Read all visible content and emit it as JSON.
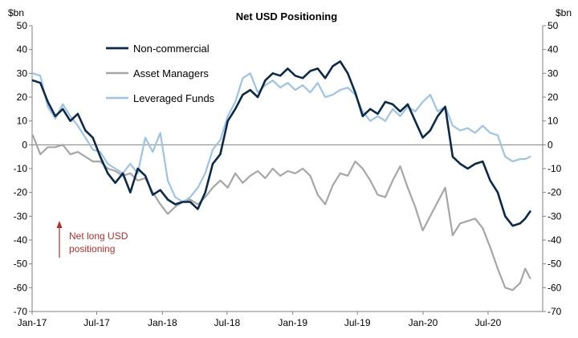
{
  "chart_data": {
    "type": "line",
    "title": "Net USD Positioning",
    "ylabel_left": "$bn",
    "ylabel_right": "$bn",
    "ylim": [
      -70,
      50
    ],
    "yticks": [
      -70,
      -60,
      -50,
      -40,
      -30,
      -20,
      -10,
      0,
      10,
      20,
      30,
      40,
      50
    ],
    "x_range": [
      "2017-01-01",
      "2020-12-01"
    ],
    "x_tick_labels": [
      {
        "label": "Jan-17",
        "date": "2017-01-01"
      },
      {
        "label": "Jul-17",
        "date": "2017-07-01"
      },
      {
        "label": "Jan-18",
        "date": "2018-01-01"
      },
      {
        "label": "Jul-18",
        "date": "2018-07-01"
      },
      {
        "label": "Jan-19",
        "date": "2019-01-01"
      },
      {
        "label": "Jul-19",
        "date": "2019-07-01"
      },
      {
        "label": "Jan-20",
        "date": "2020-01-01"
      },
      {
        "label": "Jul-20",
        "date": "2020-07-01"
      }
    ],
    "legend_position": "top-left",
    "annotation": {
      "lines": [
        "Net long USD",
        "positioning"
      ],
      "color": "#b03030"
    },
    "series": [
      {
        "name": "Non-commercial",
        "color": "#0b2a4a",
        "points": [
          [
            "2017-01-03",
            27
          ],
          [
            "2017-01-24",
            26
          ],
          [
            "2017-02-14",
            18
          ],
          [
            "2017-03-07",
            12
          ],
          [
            "2017-03-28",
            15
          ],
          [
            "2017-04-18",
            10
          ],
          [
            "2017-05-09",
            13
          ],
          [
            "2017-05-30",
            6
          ],
          [
            "2017-06-20",
            3
          ],
          [
            "2017-07-11",
            -5
          ],
          [
            "2017-08-01",
            -12
          ],
          [
            "2017-08-22",
            -16
          ],
          [
            "2017-09-12",
            -12
          ],
          [
            "2017-10-03",
            -20
          ],
          [
            "2017-10-24",
            -10
          ],
          [
            "2017-11-14",
            -13
          ],
          [
            "2017-12-05",
            -21
          ],
          [
            "2017-12-26",
            -19
          ],
          [
            "2018-01-16",
            -23
          ],
          [
            "2018-02-06",
            -25
          ],
          [
            "2018-02-27",
            -24
          ],
          [
            "2018-03-20",
            -24
          ],
          [
            "2018-04-10",
            -27
          ],
          [
            "2018-05-01",
            -20
          ],
          [
            "2018-05-22",
            -8
          ],
          [
            "2018-06-12",
            -4
          ],
          [
            "2018-07-03",
            10
          ],
          [
            "2018-07-24",
            15
          ],
          [
            "2018-08-14",
            21
          ],
          [
            "2018-09-04",
            23
          ],
          [
            "2018-09-25",
            20
          ],
          [
            "2018-10-16",
            27
          ],
          [
            "2018-11-06",
            30
          ],
          [
            "2018-11-27",
            29
          ],
          [
            "2018-12-18",
            32
          ],
          [
            "2019-01-08",
            29
          ],
          [
            "2019-01-29",
            28
          ],
          [
            "2019-02-19",
            31
          ],
          [
            "2019-03-12",
            32
          ],
          [
            "2019-04-02",
            28
          ],
          [
            "2019-04-23",
            33
          ],
          [
            "2019-05-14",
            35
          ],
          [
            "2019-06-04",
            30
          ],
          [
            "2019-06-25",
            22
          ],
          [
            "2019-07-16",
            12
          ],
          [
            "2019-08-06",
            15
          ],
          [
            "2019-08-27",
            13
          ],
          [
            "2019-09-17",
            18
          ],
          [
            "2019-10-08",
            17
          ],
          [
            "2019-10-29",
            14
          ],
          [
            "2019-11-19",
            17
          ],
          [
            "2019-12-10",
            10
          ],
          [
            "2019-12-31",
            3
          ],
          [
            "2020-01-21",
            6
          ],
          [
            "2020-02-11",
            12
          ],
          [
            "2020-03-03",
            16
          ],
          [
            "2020-03-24",
            -5
          ],
          [
            "2020-04-14",
            -8
          ],
          [
            "2020-05-05",
            -10
          ],
          [
            "2020-05-26",
            -8
          ],
          [
            "2020-06-16",
            -7
          ],
          [
            "2020-07-07",
            -15
          ],
          [
            "2020-07-28",
            -20
          ],
          [
            "2020-08-18",
            -30
          ],
          [
            "2020-09-08",
            -34
          ],
          [
            "2020-09-29",
            -33
          ],
          [
            "2020-10-13",
            -31
          ],
          [
            "2020-10-27",
            -28
          ]
        ]
      },
      {
        "name": "Asset Managers",
        "color": "#a6a6a6",
        "points": [
          [
            "2017-01-03",
            4
          ],
          [
            "2017-01-24",
            -4
          ],
          [
            "2017-02-14",
            -1
          ],
          [
            "2017-03-07",
            -1
          ],
          [
            "2017-03-28",
            0
          ],
          [
            "2017-04-18",
            -4
          ],
          [
            "2017-05-09",
            -3
          ],
          [
            "2017-05-30",
            -5
          ],
          [
            "2017-06-20",
            -7
          ],
          [
            "2017-07-11",
            -7
          ],
          [
            "2017-08-01",
            -10
          ],
          [
            "2017-08-22",
            -11
          ],
          [
            "2017-09-12",
            -13
          ],
          [
            "2017-10-03",
            -12
          ],
          [
            "2017-10-24",
            -15
          ],
          [
            "2017-11-14",
            -14
          ],
          [
            "2017-12-05",
            -20
          ],
          [
            "2017-12-26",
            -25
          ],
          [
            "2018-01-16",
            -29
          ],
          [
            "2018-02-06",
            -26
          ],
          [
            "2018-02-27",
            -24
          ],
          [
            "2018-03-20",
            -23
          ],
          [
            "2018-04-10",
            -25
          ],
          [
            "2018-05-01",
            -22
          ],
          [
            "2018-05-22",
            -18
          ],
          [
            "2018-06-12",
            -15
          ],
          [
            "2018-07-03",
            -18
          ],
          [
            "2018-07-24",
            -12
          ],
          [
            "2018-08-14",
            -16
          ],
          [
            "2018-09-04",
            -13
          ],
          [
            "2018-09-25",
            -11
          ],
          [
            "2018-10-16",
            -14
          ],
          [
            "2018-11-06",
            -10
          ],
          [
            "2018-11-27",
            -13
          ],
          [
            "2018-12-18",
            -11
          ],
          [
            "2019-01-08",
            -12
          ],
          [
            "2019-01-29",
            -10
          ],
          [
            "2019-02-19",
            -13
          ],
          [
            "2019-03-12",
            -21
          ],
          [
            "2019-04-02",
            -25
          ],
          [
            "2019-04-23",
            -17
          ],
          [
            "2019-05-14",
            -12
          ],
          [
            "2019-06-04",
            -13
          ],
          [
            "2019-06-25",
            -7
          ],
          [
            "2019-07-16",
            -10
          ],
          [
            "2019-08-06",
            -15
          ],
          [
            "2019-08-27",
            -21
          ],
          [
            "2019-09-17",
            -22
          ],
          [
            "2019-10-08",
            -15
          ],
          [
            "2019-10-29",
            -9
          ],
          [
            "2019-11-19",
            -18
          ],
          [
            "2019-12-10",
            -26
          ],
          [
            "2019-12-31",
            -36
          ],
          [
            "2020-01-21",
            -30
          ],
          [
            "2020-02-11",
            -24
          ],
          [
            "2020-03-03",
            -18
          ],
          [
            "2020-03-24",
            -38
          ],
          [
            "2020-04-14",
            -33
          ],
          [
            "2020-05-05",
            -32
          ],
          [
            "2020-05-26",
            -31
          ],
          [
            "2020-06-16",
            -35
          ],
          [
            "2020-07-07",
            -43
          ],
          [
            "2020-07-28",
            -52
          ],
          [
            "2020-08-18",
            -60
          ],
          [
            "2020-09-08",
            -61
          ],
          [
            "2020-09-29",
            -58
          ],
          [
            "2020-10-13",
            -52
          ],
          [
            "2020-10-27",
            -56
          ]
        ]
      },
      {
        "name": "Leveraged Funds",
        "color": "#9dc3e6",
        "points": [
          [
            "2017-01-03",
            30
          ],
          [
            "2017-01-24",
            29
          ],
          [
            "2017-02-14",
            16
          ],
          [
            "2017-03-07",
            11
          ],
          [
            "2017-03-28",
            17
          ],
          [
            "2017-04-18",
            12
          ],
          [
            "2017-05-09",
            8
          ],
          [
            "2017-05-30",
            3
          ],
          [
            "2017-06-20",
            -2
          ],
          [
            "2017-07-11",
            -3
          ],
          [
            "2017-08-01",
            -8
          ],
          [
            "2017-08-22",
            -10
          ],
          [
            "2017-09-12",
            -12
          ],
          [
            "2017-10-03",
            -8
          ],
          [
            "2017-10-24",
            -12
          ],
          [
            "2017-11-14",
            3
          ],
          [
            "2017-12-05",
            -3
          ],
          [
            "2017-12-26",
            5
          ],
          [
            "2018-01-16",
            -15
          ],
          [
            "2018-02-06",
            -22
          ],
          [
            "2018-02-27",
            -24
          ],
          [
            "2018-03-20",
            -22
          ],
          [
            "2018-04-10",
            -18
          ],
          [
            "2018-05-01",
            -12
          ],
          [
            "2018-05-22",
            -2
          ],
          [
            "2018-06-12",
            2
          ],
          [
            "2018-07-03",
            12
          ],
          [
            "2018-07-24",
            18
          ],
          [
            "2018-08-14",
            28
          ],
          [
            "2018-09-04",
            30
          ],
          [
            "2018-09-25",
            22
          ],
          [
            "2018-10-16",
            25
          ],
          [
            "2018-11-06",
            27
          ],
          [
            "2018-11-27",
            24
          ],
          [
            "2018-12-18",
            26
          ],
          [
            "2019-01-08",
            23
          ],
          [
            "2019-01-29",
            25
          ],
          [
            "2019-02-19",
            22
          ],
          [
            "2019-03-12",
            26
          ],
          [
            "2019-04-02",
            20
          ],
          [
            "2019-04-23",
            21
          ],
          [
            "2019-05-14",
            23
          ],
          [
            "2019-06-04",
            24
          ],
          [
            "2019-06-25",
            21
          ],
          [
            "2019-07-16",
            14
          ],
          [
            "2019-08-06",
            10
          ],
          [
            "2019-08-27",
            12
          ],
          [
            "2019-09-17",
            10
          ],
          [
            "2019-10-08",
            15
          ],
          [
            "2019-10-29",
            12
          ],
          [
            "2019-11-19",
            16
          ],
          [
            "2019-12-10",
            14
          ],
          [
            "2019-12-31",
            18
          ],
          [
            "2020-01-21",
            21
          ],
          [
            "2020-02-11",
            14
          ],
          [
            "2020-03-03",
            16
          ],
          [
            "2020-03-24",
            8
          ],
          [
            "2020-04-14",
            6
          ],
          [
            "2020-05-05",
            7
          ],
          [
            "2020-05-26",
            5
          ],
          [
            "2020-06-16",
            8
          ],
          [
            "2020-07-07",
            5
          ],
          [
            "2020-07-28",
            4
          ],
          [
            "2020-08-18",
            -5
          ],
          [
            "2020-09-08",
            -7
          ],
          [
            "2020-09-29",
            -6
          ],
          [
            "2020-10-13",
            -6
          ],
          [
            "2020-10-27",
            -5
          ]
        ]
      }
    ]
  }
}
